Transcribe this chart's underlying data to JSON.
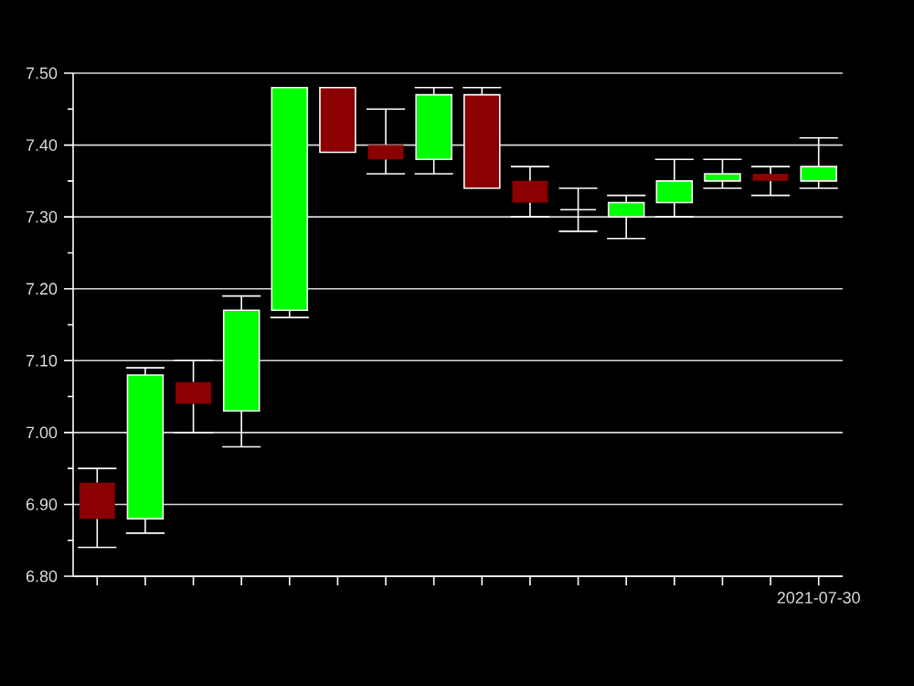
{
  "chart_data": {
    "type": "candlestick",
    "categories": [
      null,
      null,
      null,
      null,
      null,
      null,
      null,
      null,
      null,
      null,
      null,
      null,
      null,
      null,
      null,
      "2021-07-30"
    ],
    "ohlc": [
      [
        6.93,
        6.95,
        6.84,
        6.88
      ],
      [
        6.88,
        7.09,
        6.86,
        7.08
      ],
      [
        7.07,
        7.1,
        7.0,
        7.04
      ],
      [
        7.03,
        7.19,
        6.98,
        7.17
      ],
      [
        7.17,
        7.48,
        7.16,
        7.48
      ],
      [
        7.48,
        7.48,
        7.39,
        7.39
      ],
      [
        7.4,
        7.45,
        7.36,
        7.38
      ],
      [
        7.38,
        7.48,
        7.36,
        7.47
      ],
      [
        7.47,
        7.48,
        7.34,
        7.34
      ],
      [
        7.35,
        7.37,
        7.3,
        7.32
      ],
      [
        7.31,
        7.34,
        7.28,
        7.31
      ],
      [
        7.3,
        7.33,
        7.27,
        7.32
      ],
      [
        7.32,
        7.38,
        7.3,
        7.35
      ],
      [
        7.35,
        7.38,
        7.34,
        7.36
      ],
      [
        7.36,
        7.37,
        7.33,
        7.35
      ],
      [
        7.35,
        7.41,
        7.34,
        7.37
      ]
    ],
    "colors": [
      "#8b0000",
      "#00ff00",
      "#8b0000",
      "#00ff00",
      "#00ff00",
      "#8b0000",
      "#8b0000",
      "#00ff00",
      "#8b0000",
      "#8b0000",
      "#ffffff",
      "#00ff00",
      "#00ff00",
      "#00ff00",
      "#8b0000",
      "#00ff00"
    ],
    "ylim": [
      6.8,
      7.5
    ],
    "yticks": [
      {
        "value": 6.8,
        "label": "6.80"
      },
      {
        "value": 6.85,
        "label": null
      },
      {
        "value": 6.9,
        "label": "6.90"
      },
      {
        "value": 6.95,
        "label": null
      },
      {
        "value": 7.0,
        "label": "7.00"
      },
      {
        "value": 7.05,
        "label": null
      },
      {
        "value": 7.1,
        "label": "7.10"
      },
      {
        "value": 7.15,
        "label": null
      },
      {
        "value": 7.2,
        "label": "7.20"
      },
      {
        "value": 7.25,
        "label": null
      },
      {
        "value": 7.3,
        "label": "7.30"
      },
      {
        "value": 7.35,
        "label": null
      },
      {
        "value": 7.4,
        "label": "7.40"
      },
      {
        "value": 7.45,
        "label": null
      },
      {
        "value": 7.5,
        "label": "7.50"
      }
    ],
    "grid": "y"
  }
}
